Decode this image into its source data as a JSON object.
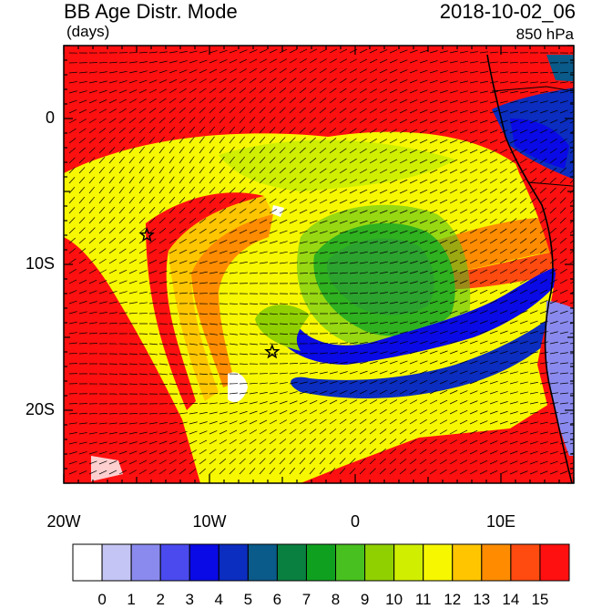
{
  "header": {
    "title": "BB Age Distr. Mode",
    "units": "(days)",
    "datetime": "2018-10-02_06",
    "level": "850 hPa"
  },
  "axes": {
    "y_labels": [
      {
        "text": "0",
        "lat": 0
      },
      {
        "text": "10S",
        "lat": -10
      },
      {
        "text": "20S",
        "lat": -20
      }
    ],
    "x_labels": [
      {
        "text": "20W",
        "lon": -20
      },
      {
        "text": "10W",
        "lon": -10
      },
      {
        "text": "0",
        "lon": 0
      },
      {
        "text": "10E",
        "lon": 10
      }
    ]
  },
  "colorbar": {
    "labels": [
      "0",
      "1",
      "2",
      "3",
      "4",
      "5",
      "6",
      "7",
      "8",
      "9",
      "10",
      "11",
      "12",
      "13",
      "14",
      "15"
    ],
    "colors": [
      "#ffffff",
      "#c5c5f5",
      "#8a8aee",
      "#4a4aef",
      "#0a0ae6",
      "#0b2dc0",
      "#0a5a8a",
      "#0a8040",
      "#10a020",
      "#48c020",
      "#90d000",
      "#d0ef00",
      "#f7f700",
      "#ffc600",
      "#ff8c00",
      "#ff4a10",
      "#ff1010"
    ]
  },
  "markers": [
    {
      "name": "star-marker-1",
      "lon": -14.3,
      "lat": -8
    },
    {
      "name": "star-marker-2",
      "lon": -5.7,
      "lat": -16
    }
  ],
  "chart_data": {
    "type": "heatmap",
    "title": "BB Age Distr. Mode",
    "colorbar_label": "(days)",
    "lon_range": [
      -20,
      15
    ],
    "lat_range": [
      -25,
      5
    ],
    "levels": [
      0,
      1,
      2,
      3,
      4,
      5,
      6,
      7,
      8,
      9,
      10,
      11,
      12,
      13,
      14,
      15
    ]
  }
}
